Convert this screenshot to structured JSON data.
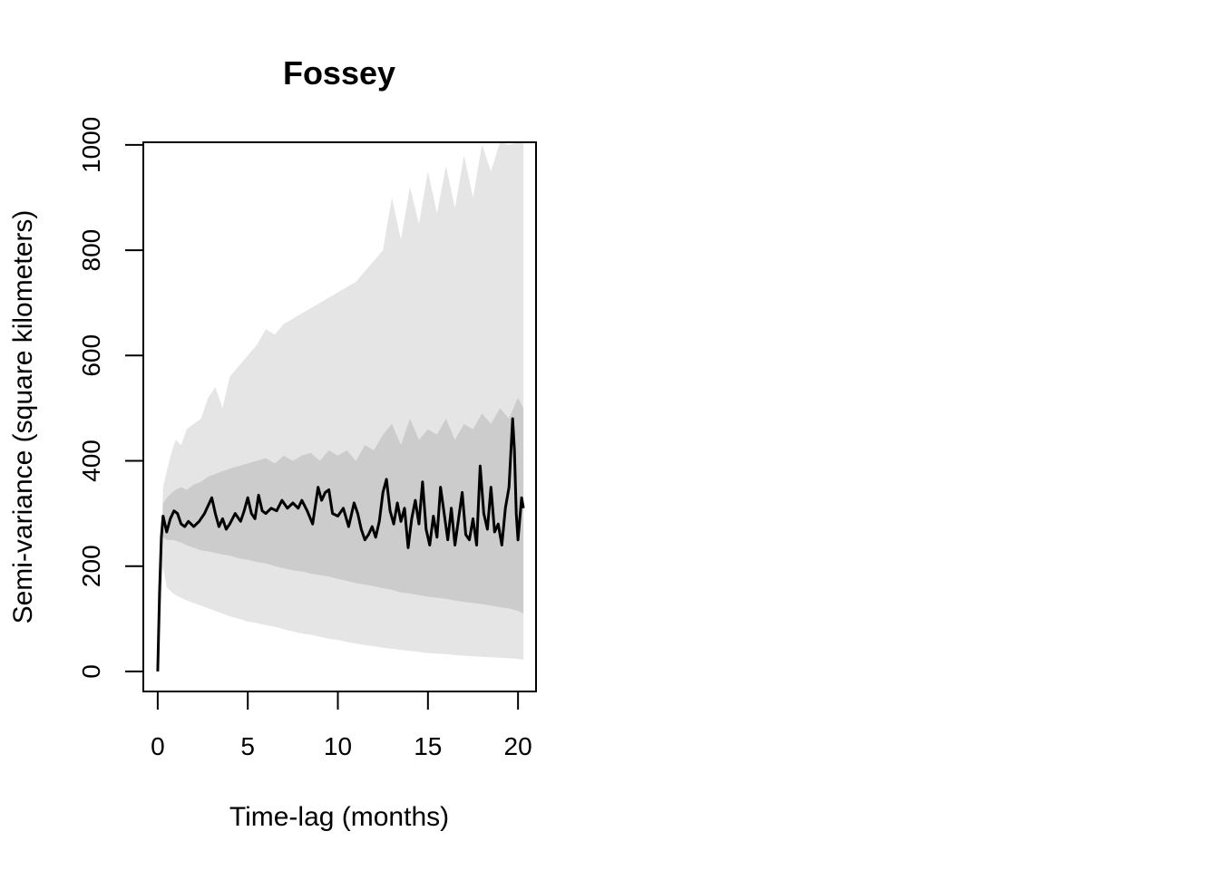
{
  "chart_data": {
    "type": "line",
    "title": "Fossey",
    "xlabel": "Time-lag (months)",
    "ylabel": "Semi-variance (square kilometers)",
    "xlim": [
      -0.8,
      21
    ],
    "ylim": [
      -38,
      1005
    ],
    "xticks": [
      0,
      5,
      10,
      15,
      20
    ],
    "yticks": [
      0,
      200,
      400,
      600,
      800,
      1000
    ],
    "grid": false,
    "legend": "none",
    "colors": {
      "line": "#000000",
      "inner_band": "#cccccc",
      "outer_band": "#e5e5e5",
      "axis": "#000000"
    },
    "series": [
      {
        "x": [
          0,
          0.1,
          0.2,
          0.3,
          0.5,
          0.7,
          0.9,
          1.1,
          1.3,
          1.5,
          1.7,
          2,
          2.3,
          2.6,
          2.8,
          3,
          3.2,
          3.4,
          3.6,
          3.8,
          4,
          4.3,
          4.6,
          4.8,
          5,
          5.2,
          5.4,
          5.6,
          5.8,
          6,
          6.3,
          6.6,
          6.9,
          7.2,
          7.5,
          7.8,
          8,
          8.3,
          8.6,
          8.9,
          9.1,
          9.3,
          9.5,
          9.7,
          10,
          10.3,
          10.6,
          10.9,
          11.1,
          11.3,
          11.5,
          11.7,
          11.9,
          12.1,
          12.3,
          12.5,
          12.7,
          12.9,
          13.1,
          13.3,
          13.5,
          13.7,
          13.9,
          14.1,
          14.3,
          14.5,
          14.7,
          14.9,
          15.1,
          15.3,
          15.5,
          15.7,
          15.9,
          16.1,
          16.3,
          16.5,
          16.7,
          16.9,
          17.1,
          17.3,
          17.5,
          17.7,
          17.9,
          18.1,
          18.3,
          18.5,
          18.7,
          18.9,
          19.1,
          19.3,
          19.5,
          19.7,
          19.8,
          19.9,
          20,
          20.1,
          20.2,
          20.3
        ],
        "y": [
          0,
          150,
          255,
          295,
          265,
          290,
          305,
          300,
          280,
          275,
          285,
          275,
          285,
          300,
          315,
          330,
          300,
          275,
          290,
          270,
          280,
          300,
          285,
          305,
          330,
          300,
          290,
          335,
          305,
          300,
          310,
          305,
          325,
          310,
          320,
          310,
          325,
          305,
          280,
          350,
          325,
          340,
          345,
          300,
          295,
          310,
          275,
          320,
          300,
          270,
          250,
          260,
          275,
          255,
          285,
          340,
          365,
          305,
          280,
          320,
          285,
          310,
          235,
          290,
          325,
          280,
          360,
          270,
          240,
          295,
          255,
          350,
          300,
          250,
          310,
          240,
          290,
          340,
          260,
          250,
          290,
          240,
          390,
          300,
          270,
          350,
          265,
          280,
          240,
          310,
          350,
          480,
          420,
          300,
          250,
          290,
          330,
          310
        ]
      }
    ],
    "bands": [
      {
        "x": [
          0,
          0.3,
          0.5,
          0.8,
          1,
          1.3,
          1.6,
          2,
          2.4,
          2.8,
          3.2,
          3.6,
          4,
          4.5,
          5,
          5.5,
          6,
          6.5,
          7,
          7.5,
          8,
          8.5,
          9,
          9.5,
          10,
          10.5,
          11,
          11.5,
          12,
          12.5,
          13,
          13.5,
          14,
          14.5,
          15,
          15.5,
          16,
          16.5,
          17,
          17.5,
          18,
          18.5,
          19,
          19.5,
          20,
          20.3
        ],
        "low": [
          0,
          255,
          250,
          250,
          248,
          245,
          240,
          235,
          230,
          228,
          225,
          222,
          220,
          215,
          212,
          208,
          205,
          200,
          196,
          192,
          190,
          186,
          183,
          180,
          176,
          172,
          168,
          165,
          162,
          158,
          155,
          150,
          148,
          145,
          142,
          140,
          138,
          135,
          132,
          130,
          128,
          125,
          122,
          120,
          115,
          110
        ],
        "high": [
          0,
          320,
          330,
          340,
          345,
          350,
          345,
          355,
          360,
          370,
          375,
          380,
          385,
          390,
          395,
          400,
          405,
          395,
          410,
          400,
          410,
          415,
          400,
          420,
          410,
          420,
          400,
          430,
          420,
          450,
          470,
          430,
          480,
          440,
          460,
          450,
          480,
          440,
          470,
          460,
          490,
          470,
          500,
          480,
          520,
          500
        ]
      },
      {
        "x": [
          0,
          0.3,
          0.5,
          0.8,
          1,
          1.3,
          1.6,
          2,
          2.4,
          2.8,
          3.2,
          3.6,
          4,
          4.5,
          5,
          5.5,
          6,
          6.5,
          7,
          7.5,
          8,
          8.5,
          9,
          9.5,
          10,
          10.5,
          11,
          11.5,
          12,
          12.5,
          13,
          13.5,
          14,
          14.5,
          15,
          15.5,
          16,
          16.5,
          17,
          17.5,
          18,
          18.5,
          19,
          19.5,
          20,
          20.3
        ],
        "low": [
          0,
          200,
          160,
          150,
          145,
          140,
          135,
          130,
          125,
          120,
          115,
          110,
          105,
          100,
          95,
          92,
          88,
          85,
          80,
          76,
          72,
          70,
          66,
          62,
          60,
          56,
          53,
          50,
          48,
          45,
          43,
          41,
          39,
          37,
          35,
          34,
          33,
          31,
          30,
          29,
          28,
          27,
          26,
          25,
          24,
          22
        ],
        "high": [
          0,
          350,
          380,
          420,
          440,
          430,
          460,
          470,
          480,
          520,
          540,
          500,
          560,
          580,
          600,
          620,
          650,
          640,
          660,
          670,
          680,
          690,
          700,
          710,
          720,
          730,
          740,
          760,
          780,
          800,
          900,
          820,
          920,
          850,
          950,
          870,
          960,
          880,
          980,
          900,
          1000,
          950,
          1005,
          1000,
          1005,
          1005
        ]
      }
    ]
  }
}
